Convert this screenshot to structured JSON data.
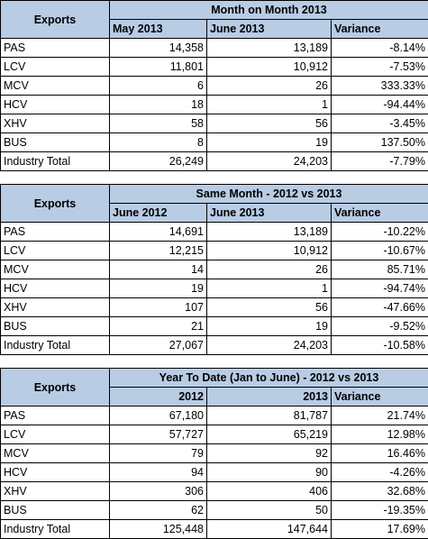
{
  "tables": [
    {
      "exports_label": "Exports",
      "title": "Month on Month 2013",
      "col_headers": [
        "May 2013",
        "June 2013",
        "Variance"
      ],
      "col_header_align": [
        "left",
        "left",
        "left"
      ],
      "rows": [
        {
          "label": "PAS",
          "a": "14,358",
          "b": "13,189",
          "v": "-8.14%"
        },
        {
          "label": "LCV",
          "a": "11,801",
          "b": "10,912",
          "v": "-7.53%"
        },
        {
          "label": "MCV",
          "a": "6",
          "b": "26",
          "v": "333.33%"
        },
        {
          "label": "HCV",
          "a": "18",
          "b": "1",
          "v": "-94.44%"
        },
        {
          "label": "XHV",
          "a": "58",
          "b": "56",
          "v": "-3.45%"
        },
        {
          "label": "BUS",
          "a": "8",
          "b": "19",
          "v": "137.50%"
        },
        {
          "label": "Industry Total",
          "a": "26,249",
          "b": "24,203",
          "v": "-7.79%"
        }
      ]
    },
    {
      "exports_label": "Exports",
      "title": "Same Month - 2012 vs 2013",
      "col_headers": [
        "June 2012",
        "June 2013",
        "Variance"
      ],
      "col_header_align": [
        "left",
        "left",
        "left"
      ],
      "rows": [
        {
          "label": "PAS",
          "a": "14,691",
          "b": "13,189",
          "v": "-10.22%"
        },
        {
          "label": "LCV",
          "a": "12,215",
          "b": "10,912",
          "v": "-10.67%"
        },
        {
          "label": "MCV",
          "a": "14",
          "b": "26",
          "v": "85.71%"
        },
        {
          "label": "HCV",
          "a": "19",
          "b": "1",
          "v": "-94.74%"
        },
        {
          "label": "XHV",
          "a": "107",
          "b": "56",
          "v": "-47.66%"
        },
        {
          "label": "BUS",
          "a": "21",
          "b": "19",
          "v": "-9.52%"
        },
        {
          "label": "Industry Total",
          "a": "27,067",
          "b": "24,203",
          "v": "-10.58%"
        }
      ]
    },
    {
      "exports_label": "Exports",
      "title": "Year To Date (Jan to June) - 2012 vs 2013",
      "col_headers": [
        "2012",
        "2013",
        "Variance"
      ],
      "col_header_align": [
        "right",
        "right",
        "left"
      ],
      "rows": [
        {
          "label": "PAS",
          "a": "67,180",
          "b": "81,787",
          "v": "21.74%"
        },
        {
          "label": "LCV",
          "a": "57,727",
          "b": "65,219",
          "v": "12.98%"
        },
        {
          "label": "MCV",
          "a": "79",
          "b": "92",
          "v": "16.46%"
        },
        {
          "label": "HCV",
          "a": "94",
          "b": "90",
          "v": "-4.26%"
        },
        {
          "label": "XHV",
          "a": "306",
          "b": "406",
          "v": "32.68%"
        },
        {
          "label": "BUS",
          "a": "62",
          "b": "50",
          "v": "-19.35%"
        },
        {
          "label": "Industry Total",
          "a": "125,448",
          "b": "147,644",
          "v": "17.69%"
        }
      ]
    }
  ],
  "colors": {
    "header_fill": "#b8cce4",
    "border": "#000000"
  }
}
